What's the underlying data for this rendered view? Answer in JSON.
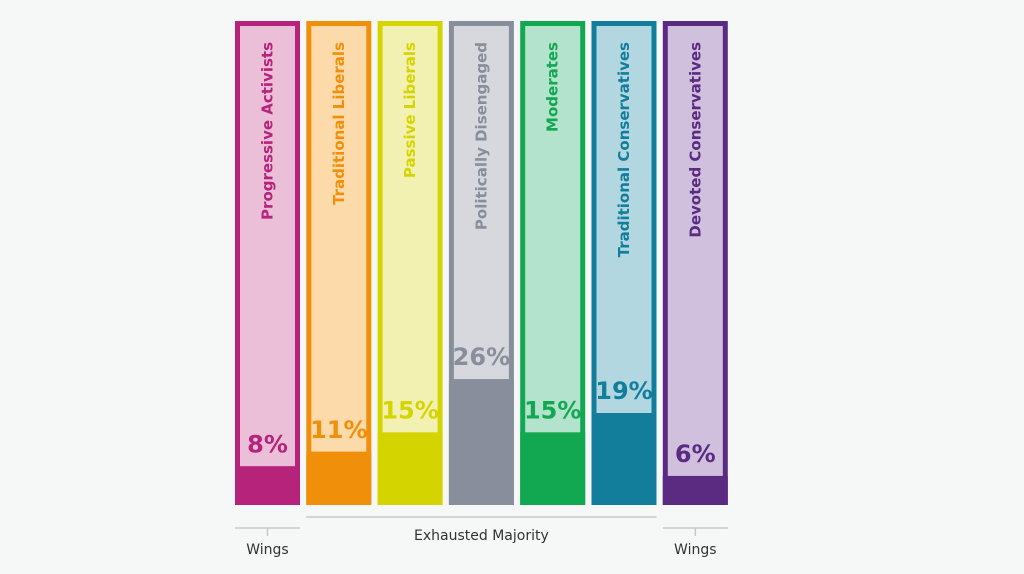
{
  "chart_data": {
    "type": "bar",
    "categories": [
      "Progressive Activists",
      "Traditional Liberals",
      "Passive Liberals",
      "Politically Disengaged",
      "Moderates",
      "Traditional Conservatives",
      "Devoted Conservatives"
    ],
    "values": [
      8,
      11,
      15,
      26,
      15,
      19,
      6
    ],
    "value_labels": [
      "8%",
      "11%",
      "15%",
      "26%",
      "15%",
      "19%",
      "6%"
    ],
    "colors": [
      "#b5237b",
      "#f0900a",
      "#d4d400",
      "#888e9c",
      "#12a851",
      "#127e9c",
      "#5b2b82"
    ],
    "light_colors": [
      "#ecbfd9",
      "#fcdaa9",
      "#f3f1b2",
      "#d6d8de",
      "#b3e3cd",
      "#b3d7e1",
      "#d0bfdd"
    ],
    "groups": [
      {
        "label": "Wings",
        "span": 1
      },
      {
        "label": "Exhausted Majority",
        "span": 5
      },
      {
        "label": "Wings",
        "span": 1
      }
    ]
  }
}
